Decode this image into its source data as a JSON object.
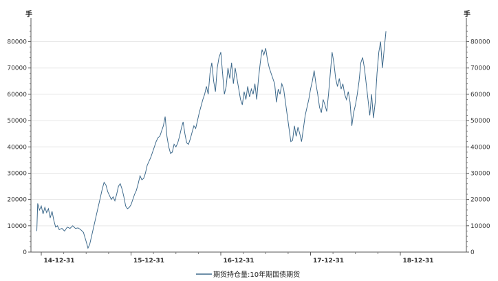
{
  "chart_data": {
    "type": "line",
    "title": "",
    "unit_left": "手",
    "unit_right": "手",
    "xlabel": "",
    "ylabel": "",
    "x_tick_labels": [
      "14-12-31",
      "15-12-31",
      "16-12-31",
      "17-12-31",
      "18-12-31"
    ],
    "y_ticks": [
      0,
      10000,
      20000,
      30000,
      40000,
      50000,
      60000,
      70000,
      80000
    ],
    "y_tick_labels": [
      "0",
      "10000",
      "20000",
      "30000",
      "40000",
      "50000",
      "60000",
      "70000",
      "80000"
    ],
    "ylim": [
      0,
      88000
    ],
    "grid": true,
    "legend_position": "bottom",
    "series_color": "#3e6a8c",
    "series": [
      {
        "name": "期货持仓量:10年期国债期货",
        "values": [
          [
            -0.05,
            8000
          ],
          [
            -0.04,
            18500
          ],
          [
            -0.02,
            16000
          ],
          [
            0.0,
            17500
          ],
          [
            0.02,
            14500
          ],
          [
            0.04,
            17000
          ],
          [
            0.06,
            15000
          ],
          [
            0.08,
            16500
          ],
          [
            0.1,
            13000
          ],
          [
            0.12,
            15500
          ],
          [
            0.14,
            12000
          ],
          [
            0.16,
            9500
          ],
          [
            0.18,
            10000
          ],
          [
            0.2,
            8500
          ],
          [
            0.23,
            9000
          ],
          [
            0.26,
            8000
          ],
          [
            0.29,
            9500
          ],
          [
            0.32,
            9000
          ],
          [
            0.35,
            10000
          ],
          [
            0.38,
            9000
          ],
          [
            0.41,
            9200
          ],
          [
            0.44,
            8500
          ],
          [
            0.47,
            7500
          ],
          [
            0.5,
            4000
          ],
          [
            0.52,
            1500
          ],
          [
            0.54,
            3000
          ],
          [
            0.56,
            6000
          ],
          [
            0.58,
            9000
          ],
          [
            0.6,
            12000
          ],
          [
            0.62,
            15000
          ],
          [
            0.64,
            18000
          ],
          [
            0.66,
            21000
          ],
          [
            0.68,
            24000
          ],
          [
            0.7,
            26500
          ],
          [
            0.72,
            25500
          ],
          [
            0.74,
            23000
          ],
          [
            0.76,
            21500
          ],
          [
            0.78,
            20000
          ],
          [
            0.8,
            21000
          ],
          [
            0.82,
            19500
          ],
          [
            0.84,
            22000
          ],
          [
            0.86,
            25000
          ],
          [
            0.88,
            26000
          ],
          [
            0.9,
            24000
          ],
          [
            0.92,
            21000
          ],
          [
            0.94,
            17500
          ],
          [
            0.96,
            16500
          ],
          [
            0.98,
            17000
          ],
          [
            1.0,
            18000
          ],
          [
            1.02,
            20000
          ],
          [
            1.04,
            22000
          ],
          [
            1.06,
            23500
          ],
          [
            1.08,
            26000
          ],
          [
            1.1,
            29000
          ],
          [
            1.12,
            27500
          ],
          [
            1.14,
            28000
          ],
          [
            1.16,
            30000
          ],
          [
            1.18,
            33000
          ],
          [
            1.2,
            34500
          ],
          [
            1.22,
            36000
          ],
          [
            1.24,
            38000
          ],
          [
            1.26,
            40000
          ],
          [
            1.28,
            42000
          ],
          [
            1.3,
            43500
          ],
          [
            1.32,
            44000
          ],
          [
            1.34,
            46000
          ],
          [
            1.36,
            48000
          ],
          [
            1.38,
            51500
          ],
          [
            1.4,
            44000
          ],
          [
            1.42,
            40000
          ],
          [
            1.44,
            37500
          ],
          [
            1.46,
            38000
          ],
          [
            1.48,
            41000
          ],
          [
            1.5,
            40000
          ],
          [
            1.52,
            41500
          ],
          [
            1.54,
            44000
          ],
          [
            1.56,
            47000
          ],
          [
            1.58,
            49500
          ],
          [
            1.6,
            45000
          ],
          [
            1.62,
            41500
          ],
          [
            1.64,
            41000
          ],
          [
            1.66,
            43000
          ],
          [
            1.68,
            45500
          ],
          [
            1.7,
            48000
          ],
          [
            1.72,
            47000
          ],
          [
            1.74,
            50000
          ],
          [
            1.76,
            53000
          ],
          [
            1.78,
            55500
          ],
          [
            1.8,
            58000
          ],
          [
            1.82,
            60000
          ],
          [
            1.84,
            63000
          ],
          [
            1.86,
            60000
          ],
          [
            1.88,
            68000
          ],
          [
            1.9,
            72000
          ],
          [
            1.92,
            65000
          ],
          [
            1.94,
            61000
          ],
          [
            1.96,
            70000
          ],
          [
            1.98,
            74000
          ],
          [
            2.0,
            76000
          ],
          [
            2.02,
            68000
          ],
          [
            2.04,
            60000
          ],
          [
            2.06,
            63000
          ],
          [
            2.08,
            70000
          ],
          [
            2.1,
            66000
          ],
          [
            2.12,
            72000
          ],
          [
            2.14,
            64000
          ],
          [
            2.16,
            70000
          ],
          [
            2.18,
            66000
          ],
          [
            2.2,
            62000
          ],
          [
            2.22,
            58000
          ],
          [
            2.24,
            56000
          ],
          [
            2.26,
            61000
          ],
          [
            2.28,
            58000
          ],
          [
            2.3,
            63000
          ],
          [
            2.32,
            59000
          ],
          [
            2.34,
            62000
          ],
          [
            2.36,
            60000
          ],
          [
            2.38,
            64000
          ],
          [
            2.4,
            58000
          ],
          [
            2.42,
            66000
          ],
          [
            2.44,
            72000
          ],
          [
            2.46,
            77000
          ],
          [
            2.48,
            75000
          ],
          [
            2.5,
            77500
          ],
          [
            2.52,
            73000
          ],
          [
            2.54,
            70000
          ],
          [
            2.56,
            68000
          ],
          [
            2.58,
            66000
          ],
          [
            2.6,
            64000
          ],
          [
            2.62,
            57000
          ],
          [
            2.64,
            62000
          ],
          [
            2.66,
            60000
          ],
          [
            2.68,
            64000
          ],
          [
            2.7,
            62000
          ],
          [
            2.72,
            57000
          ],
          [
            2.74,
            52000
          ],
          [
            2.76,
            47000
          ],
          [
            2.78,
            42000
          ],
          [
            2.8,
            42500
          ],
          [
            2.82,
            48000
          ],
          [
            2.84,
            44000
          ],
          [
            2.86,
            47500
          ],
          [
            2.88,
            45000
          ],
          [
            2.9,
            42000
          ],
          [
            2.92,
            47000
          ],
          [
            2.94,
            52000
          ],
          [
            2.96,
            55000
          ],
          [
            2.98,
            58000
          ],
          [
            3.0,
            62000
          ],
          [
            3.02,
            65000
          ],
          [
            3.04,
            69000
          ],
          [
            3.06,
            64000
          ],
          [
            3.08,
            60000
          ],
          [
            3.1,
            55000
          ],
          [
            3.12,
            53000
          ],
          [
            3.14,
            58000
          ],
          [
            3.16,
            56000
          ],
          [
            3.18,
            53500
          ],
          [
            3.2,
            60000
          ],
          [
            3.22,
            68000
          ],
          [
            3.24,
            76000
          ],
          [
            3.26,
            72000
          ],
          [
            3.28,
            66000
          ],
          [
            3.3,
            63000
          ],
          [
            3.32,
            66000
          ],
          [
            3.34,
            62000
          ],
          [
            3.36,
            64000
          ],
          [
            3.38,
            60000
          ],
          [
            3.4,
            58000
          ],
          [
            3.42,
            61000
          ],
          [
            3.44,
            57000
          ],
          [
            3.46,
            48000
          ],
          [
            3.48,
            53000
          ],
          [
            3.5,
            56000
          ],
          [
            3.52,
            60000
          ],
          [
            3.54,
            65000
          ],
          [
            3.56,
            72000
          ],
          [
            3.58,
            74000
          ],
          [
            3.6,
            70000
          ],
          [
            3.62,
            64000
          ],
          [
            3.64,
            58000
          ],
          [
            3.66,
            52000
          ],
          [
            3.68,
            60000
          ],
          [
            3.7,
            51000
          ],
          [
            3.72,
            57000
          ],
          [
            3.74,
            68000
          ],
          [
            3.76,
            76000
          ],
          [
            3.78,
            80000
          ],
          [
            3.8,
            70000
          ],
          [
            3.82,
            77000
          ],
          [
            3.84,
            84000
          ]
        ]
      }
    ]
  }
}
